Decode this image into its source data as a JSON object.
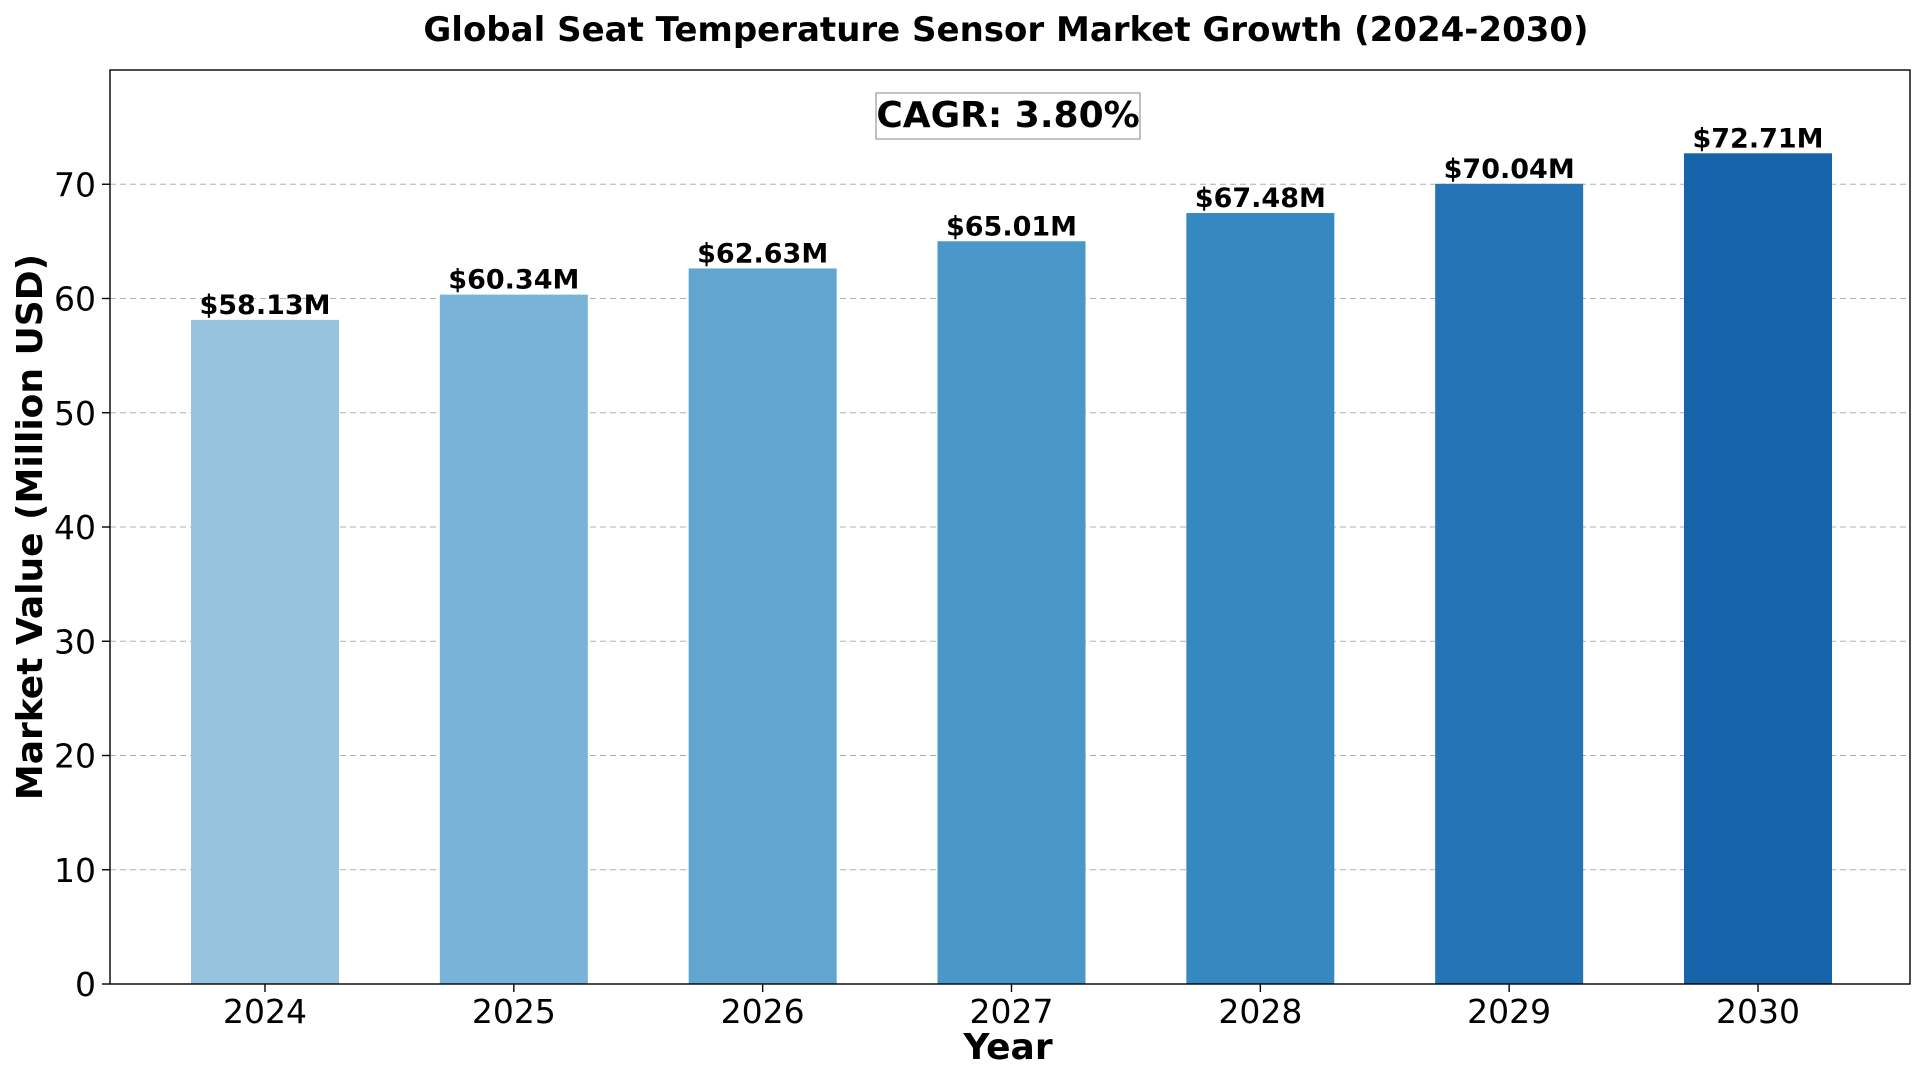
{
  "chart_data": {
    "type": "bar",
    "title": "Global Seat Temperature Sensor Market Growth (2024-2030)",
    "xlabel": "Year",
    "ylabel": "Market Value (Million USD)",
    "categories": [
      "2024",
      "2025",
      "2026",
      "2027",
      "2028",
      "2029",
      "2030"
    ],
    "values": [
      58.13,
      60.34,
      62.63,
      65.01,
      67.48,
      70.04,
      72.71
    ],
    "data_labels": [
      "$58.13M",
      "$60.34M",
      "$62.63M",
      "$65.01M",
      "$67.48M",
      "$70.04M",
      "$72.71M"
    ],
    "bar_colors": [
      "#97c3df",
      "#79b3d7",
      "#62a6d0",
      "#4a97c9",
      "#3688c0",
      "#2574b5",
      "#1763a9"
    ],
    "ylim": [
      0,
      80
    ],
    "yticks": [
      0,
      10,
      20,
      30,
      40,
      50,
      60,
      70
    ],
    "grid": "y-dashed",
    "annotation": "CAGR: 3.80%"
  }
}
